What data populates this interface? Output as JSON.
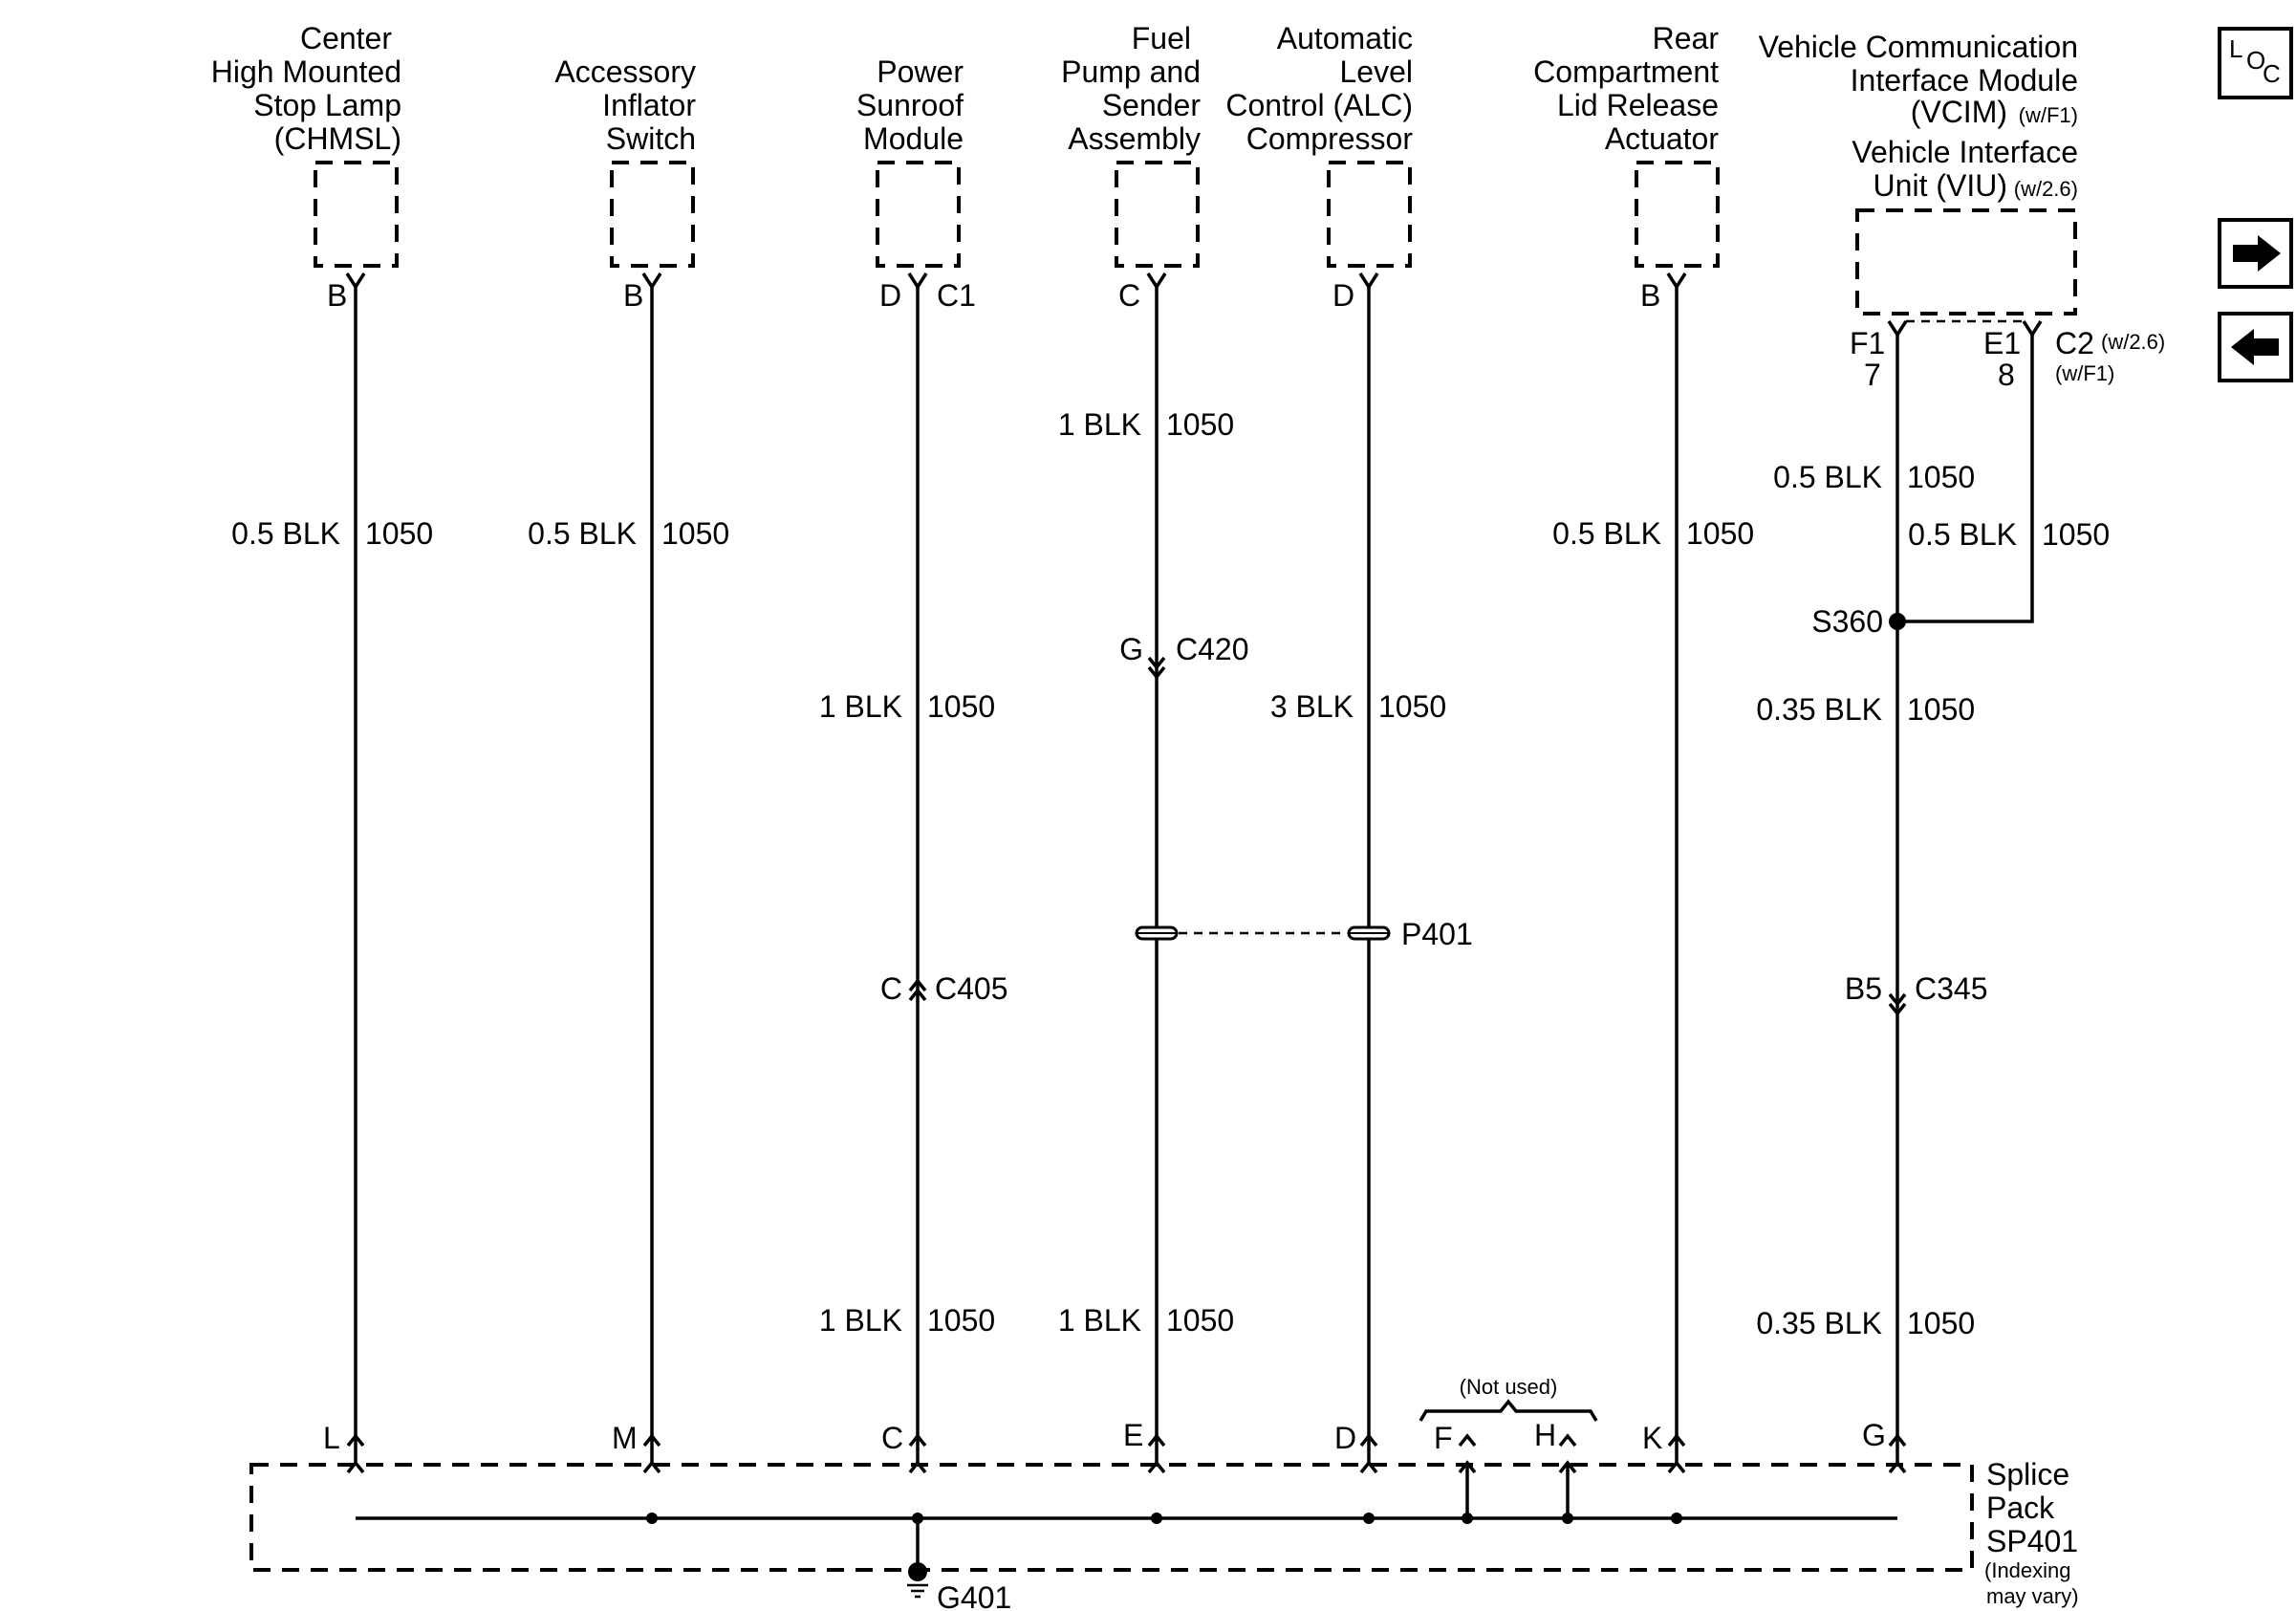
{
  "components": {
    "chmsl": [
      "Center",
      "High Mounted",
      "Stop Lamp",
      "(CHMSL)"
    ],
    "inflator": [
      "Accessory",
      "Inflator",
      "Switch"
    ],
    "sunroof": [
      "Power",
      "Sunroof",
      "Module"
    ],
    "fuel_pump": [
      "Fuel",
      "Pump and",
      "Sender",
      "Assembly"
    ],
    "alc": [
      "Automatic",
      "Level",
      "Control (ALC)",
      "Compressor"
    ],
    "rear_lid": [
      "Rear",
      "Compartment",
      "Lid Release",
      "Actuator"
    ],
    "vcim": {
      "line1": "Vehicle Communication",
      "line2": "Interface Module",
      "line3": "(VCIM)",
      "line3_note": "(w/F1)",
      "line4": "Vehicle Interface",
      "line5": "Unit (VIU)",
      "line5_note": "(w/2.6)"
    }
  },
  "pins_top": {
    "chmsl": "B",
    "inflator": "B",
    "sunroof": "D",
    "sunroof_connector": "C1",
    "fuel_pump": "C",
    "alc": "D",
    "rear_lid": "B",
    "vcim_left": "F1",
    "vcim_left_alt": "7",
    "vcim_right": "E1",
    "vcim_right_alt": "8",
    "vcim_connector": "C2",
    "vcim_connector_note1": "(w/2.6)",
    "vcim_connector_note2": "(w/F1)"
  },
  "wires": {
    "chmsl": {
      "size": "0.5 BLK",
      "circuit": "1050"
    },
    "inflator": {
      "size": "0.5 BLK",
      "circuit": "1050"
    },
    "sunroof_upper": {
      "size": "1 BLK",
      "circuit": "1050"
    },
    "sunroof_lower": {
      "size": "1 BLK",
      "circuit": "1050"
    },
    "fuel_upper": {
      "size": "1 BLK",
      "circuit": "1050"
    },
    "fuel_lower": {
      "size": "1 BLK",
      "circuit": "1050"
    },
    "alc": {
      "size": "3 BLK",
      "circuit": "1050"
    },
    "rear_lid": {
      "size": "0.5 BLK",
      "circuit": "1050"
    },
    "vcim_left": {
      "size": "0.5 BLK",
      "circuit": "1050"
    },
    "vcim_right": {
      "size": "0.5 BLK",
      "circuit": "1050"
    },
    "vcim_mid": {
      "size": "0.35 BLK",
      "circuit": "1050"
    },
    "vcim_lower": {
      "size": "0.35 BLK",
      "circuit": "1050"
    }
  },
  "inline_connectors": {
    "c420": {
      "pin": "G",
      "name": "C420"
    },
    "c405": {
      "pin": "C",
      "name": "C405"
    },
    "c345": {
      "pin": "B5",
      "name": "C345"
    },
    "p401": {
      "name": "P401"
    },
    "s360": {
      "name": "S360"
    }
  },
  "splice_pins": [
    "L",
    "M",
    "C",
    "E",
    "D",
    "F",
    "H",
    "K",
    "G"
  ],
  "not_used": "(Not used)",
  "splice_pack": {
    "line1": "Splice",
    "line2": "Pack",
    "line3": "SP401",
    "note1": "(Indexing",
    "note2": "may vary)"
  },
  "ground": "G401",
  "nav": {
    "loc_l": "L",
    "loc_o": "O",
    "loc_c": "C"
  }
}
